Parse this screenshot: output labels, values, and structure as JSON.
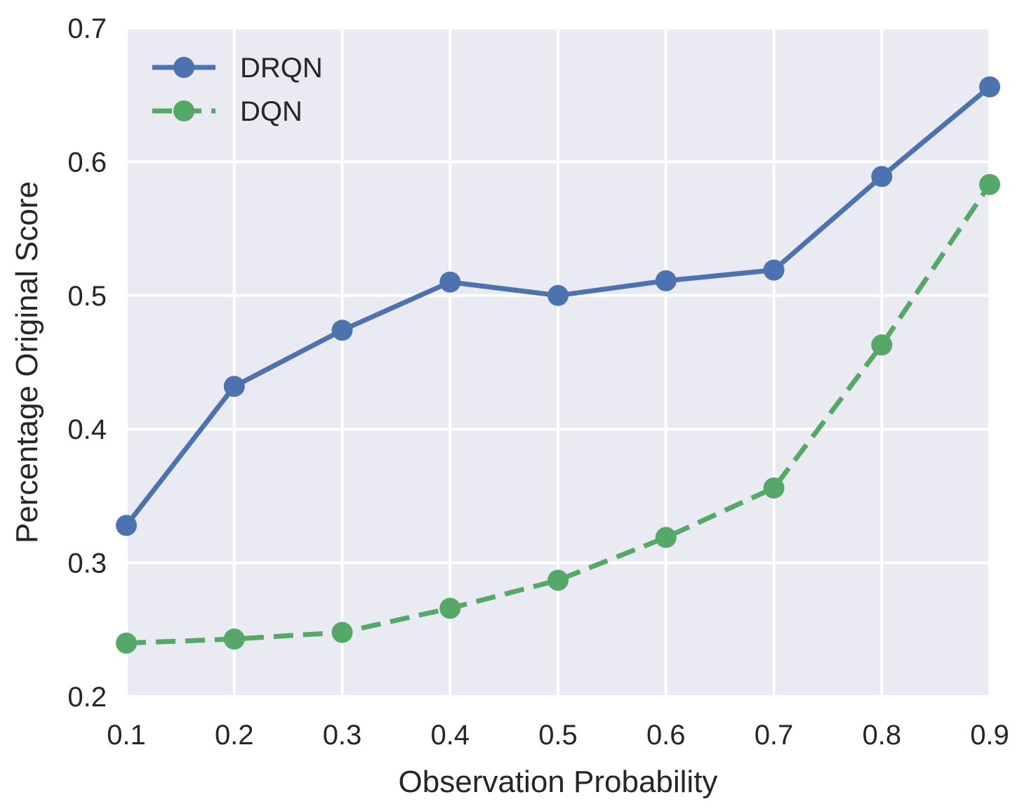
{
  "chart_data": {
    "type": "line",
    "title": "",
    "xlabel": "Observation Probability",
    "ylabel": "Percentage Original Score",
    "x": [
      0.1,
      0.2,
      0.3,
      0.4,
      0.5,
      0.6,
      0.7,
      0.8,
      0.9
    ],
    "xlim": [
      0.1,
      0.9
    ],
    "ylim": [
      0.2,
      0.7
    ],
    "x_ticks": [
      "0.1",
      "0.2",
      "0.3",
      "0.4",
      "0.5",
      "0.6",
      "0.7",
      "0.8",
      "0.9"
    ],
    "y_ticks": [
      "0.2",
      "0.3",
      "0.4",
      "0.5",
      "0.6",
      "0.7"
    ],
    "grid": true,
    "legend_position": "top-left",
    "series": [
      {
        "name": "DRQN",
        "color": "#4c72b0",
        "line_style": "solid",
        "marker": "circle",
        "values": [
          0.328,
          0.432,
          0.474,
          0.51,
          0.5,
          0.511,
          0.519,
          0.589,
          0.656
        ]
      },
      {
        "name": "DQN",
        "color": "#55a868",
        "line_style": "dashed",
        "marker": "circle",
        "values": [
          0.24,
          0.243,
          0.248,
          0.266,
          0.287,
          0.319,
          0.356,
          0.463,
          0.583
        ]
      }
    ]
  }
}
